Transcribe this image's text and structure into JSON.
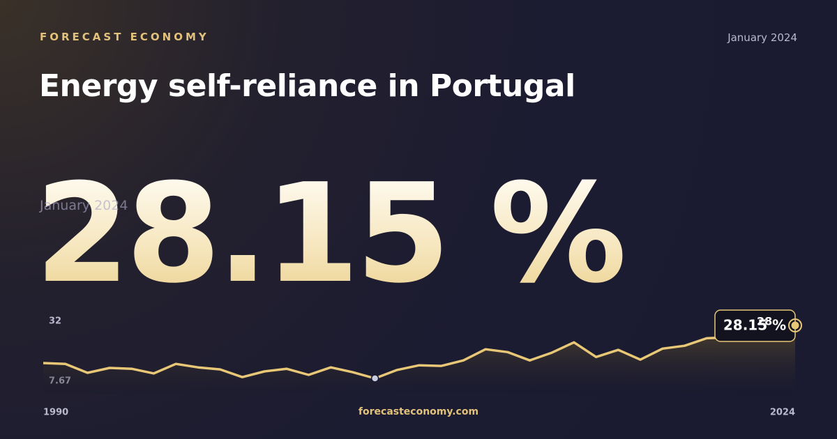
{
  "brand": "FORECAST ECONOMY",
  "date": "January 2024",
  "title": "Energy self-reliance in Portugal",
  "headline": "28.15 %",
  "footer": "forecasteconomy.com",
  "chart_data": {
    "type": "line",
    "x": [
      1990,
      1991,
      1992,
      1993,
      1994,
      1995,
      1996,
      1997,
      1998,
      1999,
      2000,
      2001,
      2002,
      2003,
      2004,
      2005,
      2006,
      2007,
      2008,
      2009,
      2010,
      2011,
      2012,
      2013,
      2014,
      2015,
      2016,
      2017,
      2018,
      2019,
      2020,
      2021,
      2022,
      2023,
      2024
    ],
    "values": [
      15.2,
      14.8,
      10.4,
      12.8,
      12.4,
      10.1,
      14.8,
      13.1,
      12.1,
      8.3,
      11.1,
      12.4,
      9.4,
      13.1,
      10.7,
      7.67,
      11.8,
      14.1,
      13.8,
      16.5,
      22.0,
      20.6,
      16.5,
      20.3,
      25.4,
      18.2,
      21.7,
      16.9,
      22.3,
      23.7,
      27.4,
      27.8,
      28.3,
      28,
      28.15
    ],
    "color": "#e8c877",
    "xlim": [
      1990,
      2024
    ],
    "xticks": [
      1990,
      2024
    ],
    "ylim": [
      7.67,
      32
    ],
    "yticks": [
      32,
      7.67
    ],
    "annotations": [
      {
        "x": 2023,
        "value": 28,
        "label": "28"
      }
    ]
  }
}
